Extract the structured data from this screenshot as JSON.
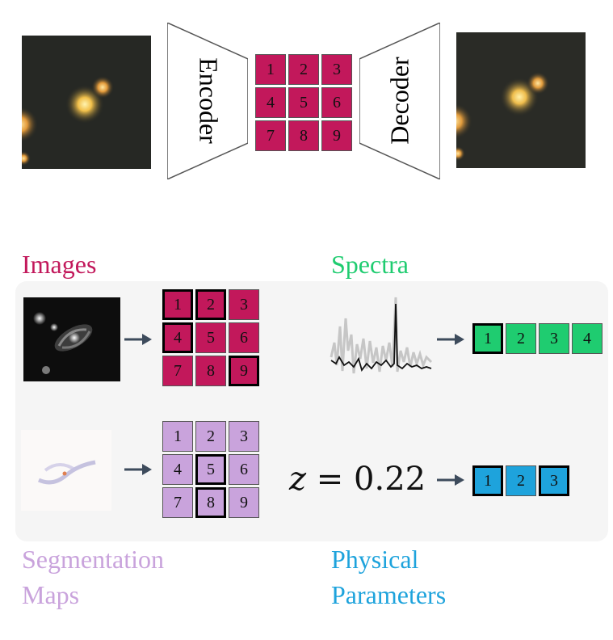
{
  "top": {
    "encoder_label": "Encoder",
    "decoder_label": "Decoder",
    "token_grid": [
      "1",
      "2",
      "3",
      "4",
      "5",
      "6",
      "7",
      "8",
      "9"
    ]
  },
  "modalities": {
    "images": {
      "label": "Images",
      "color": "#c2185b",
      "tokens": [
        "1",
        "2",
        "3",
        "4",
        "5",
        "6",
        "7",
        "8",
        "9"
      ],
      "highlighted": [
        "1",
        "2",
        "4",
        "9"
      ]
    },
    "spectra": {
      "label": "Spectra",
      "color": "#1fcc70",
      "tokens": [
        "1",
        "2",
        "3",
        "4"
      ],
      "highlighted": [
        "1"
      ]
    },
    "segmentation": {
      "label_line1": "Segmentation",
      "label_line2": "Maps",
      "color": "#c9a3dc",
      "tokens": [
        "1",
        "2",
        "3",
        "4",
        "5",
        "6",
        "7",
        "8",
        "9"
      ],
      "highlighted": [
        "5",
        "8"
      ]
    },
    "physical": {
      "label_line1": "Physical",
      "label_line2": "Parameters",
      "color": "#1ea3dc",
      "equation_var": "z",
      "equation_rest": " = 0.22",
      "tokens": [
        "1",
        "2",
        "3"
      ],
      "highlighted": [
        "1",
        "3"
      ]
    }
  }
}
